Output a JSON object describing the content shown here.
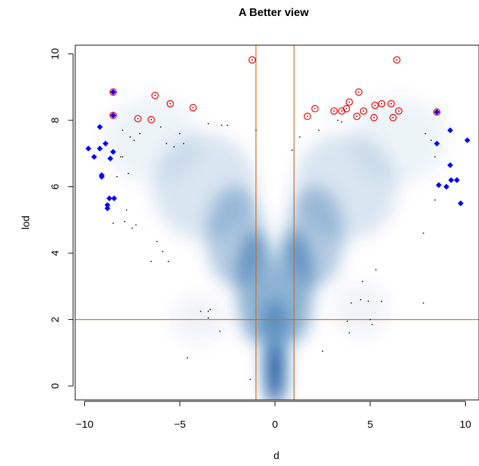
{
  "chart_data": {
    "type": "scatter",
    "title": "A Better view",
    "xlabel": "d",
    "ylabel": "lod",
    "xlim": [
      -10.3,
      10.3
    ],
    "ylim": [
      -0.35,
      10.2
    ],
    "x_ticks": [
      -10,
      -5,
      0,
      5,
      10
    ],
    "y_ticks": [
      0,
      2,
      4,
      6,
      8,
      10
    ],
    "x_tick_labels": [
      "−10",
      "−5",
      "0",
      "5",
      "10"
    ],
    "y_tick_labels": [
      "0",
      "2",
      "4",
      "6",
      "8",
      "10"
    ],
    "grid": false,
    "legend": "none",
    "rendering": "smoothScatter density",
    "density_color": "#08519c",
    "threshold_color": "#d2691e",
    "highlight_color": "#ff0000",
    "extreme_color": "#0000ff",
    "vertical_lines": [
      -1,
      1
    ],
    "horizontal_lines": [
      2
    ],
    "series": [
      {
        "marker": "red-open-circle",
        "points": [
          [
            -8.5,
            8.85
          ],
          [
            -8.5,
            8.15
          ],
          [
            -7.2,
            8.05
          ],
          [
            -6.5,
            8.02
          ],
          [
            -6.3,
            8.75
          ],
          [
            -5.5,
            8.5
          ],
          [
            -4.3,
            8.38
          ],
          [
            -1.2,
            9.82
          ],
          [
            1.7,
            8.12
          ],
          [
            2.1,
            8.35
          ],
          [
            3.1,
            8.28
          ],
          [
            3.5,
            8.28
          ],
          [
            3.75,
            8.35
          ],
          [
            3.9,
            8.55
          ],
          [
            4.3,
            8.12
          ],
          [
            4.4,
            8.85
          ],
          [
            4.65,
            8.28
          ],
          [
            5.2,
            8.08
          ],
          [
            5.25,
            8.45
          ],
          [
            5.6,
            8.5
          ],
          [
            6.1,
            8.5
          ],
          [
            6.2,
            8.08
          ],
          [
            6.4,
            9.82
          ],
          [
            6.5,
            8.28
          ],
          [
            8.5,
            8.25
          ]
        ]
      },
      {
        "marker": "blue-diamond",
        "points": [
          [
            -9.8,
            7.15
          ],
          [
            -9.5,
            6.9
          ],
          [
            -9.2,
            7.8
          ],
          [
            -9.2,
            7.15
          ],
          [
            -9.1,
            6.35
          ],
          [
            -9.1,
            6.3
          ],
          [
            -8.9,
            7.3
          ],
          [
            -8.8,
            5.45
          ],
          [
            -8.8,
            5.35
          ],
          [
            -8.7,
            5.65
          ],
          [
            -8.65,
            6.85
          ],
          [
            -8.5,
            7.05
          ],
          [
            -8.45,
            5.65
          ],
          [
            -8.5,
            8.85
          ],
          [
            -8.5,
            8.15
          ],
          [
            8.5,
            7.3
          ],
          [
            8.6,
            6.05
          ],
          [
            8.5,
            8.25
          ],
          [
            9.0,
            6.0
          ],
          [
            9.2,
            7.7
          ],
          [
            9.2,
            6.65
          ],
          [
            9.25,
            6.2
          ],
          [
            9.55,
            6.2
          ],
          [
            9.75,
            5.5
          ],
          [
            10.1,
            7.4
          ]
        ]
      },
      {
        "marker": "black-dot",
        "points": [
          [
            -8.0,
            7.7
          ],
          [
            -7.6,
            7.5
          ],
          [
            -7.4,
            7.4
          ],
          [
            -7.1,
            7.6
          ],
          [
            -5.0,
            7.6
          ],
          [
            -4.8,
            7.3
          ],
          [
            -6.0,
            7.8
          ],
          [
            -3.5,
            7.9
          ],
          [
            -2.8,
            7.85
          ],
          [
            -2.5,
            7.85
          ],
          [
            -1.0,
            7.7
          ],
          [
            -8.0,
            6.9
          ],
          [
            -7.7,
            6.4
          ],
          [
            -5.7,
            7.3
          ],
          [
            -5.3,
            7.2
          ],
          [
            -7.8,
            5.3
          ],
          [
            -7.5,
            4.75
          ],
          [
            -7.3,
            4.85
          ],
          [
            -8.1,
            6.9
          ],
          [
            -8.3,
            6.3
          ],
          [
            -8.5,
            4.9
          ],
          [
            -7.9,
            4.95
          ],
          [
            -6.2,
            4.35
          ],
          [
            -5.9,
            4.05
          ],
          [
            -6.5,
            3.75
          ],
          [
            -5.6,
            3.75
          ],
          [
            -3.9,
            2.25
          ],
          [
            -3.5,
            2.25
          ],
          [
            -3.4,
            2.3
          ],
          [
            -3.5,
            2.05
          ],
          [
            -2.9,
            1.65
          ],
          [
            -4.6,
            0.85
          ],
          [
            -1.3,
            0.2
          ],
          [
            0.9,
            7.1
          ],
          [
            1.3,
            7.5
          ],
          [
            2.3,
            7.7
          ],
          [
            3.5,
            7.95
          ],
          [
            3.3,
            8.0
          ],
          [
            2.5,
            1.05
          ],
          [
            4.6,
            3.15
          ],
          [
            4.5,
            2.6
          ],
          [
            4.9,
            2.55
          ],
          [
            5.3,
            3.5
          ],
          [
            5.6,
            2.55
          ],
          [
            4.0,
            2.5
          ],
          [
            3.8,
            1.95
          ],
          [
            3.9,
            1.6
          ],
          [
            5.0,
            2.0
          ],
          [
            5.1,
            1.85
          ],
          [
            7.9,
            7.6
          ],
          [
            7.8,
            4.6
          ],
          [
            8.4,
            5.6
          ],
          [
            8.2,
            7.4
          ],
          [
            8.4,
            6.9
          ],
          [
            7.8,
            2.5
          ]
        ]
      }
    ]
  }
}
